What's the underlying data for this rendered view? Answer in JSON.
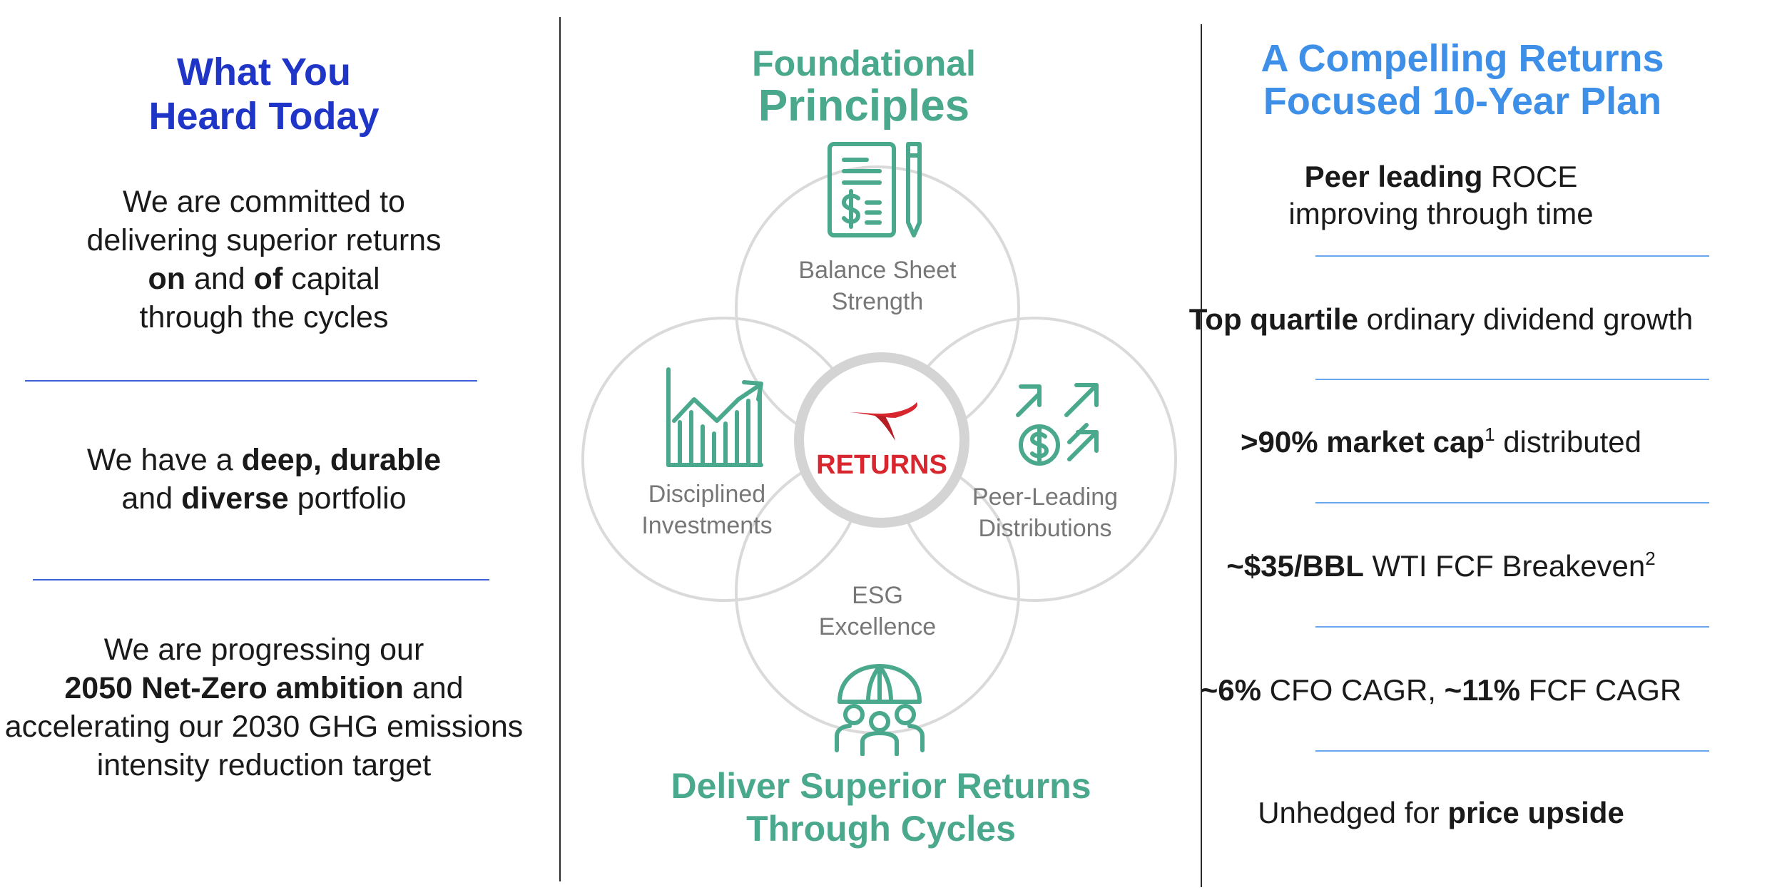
{
  "left": {
    "title_line1": "What You",
    "title_line2": "Heard Today",
    "block1": {
      "line1": "We are committed to",
      "line2": "delivering superior returns",
      "line3_bold1": "on",
      "line3_mid": " and ",
      "line3_bold2": "of",
      "line3_end": " capital",
      "line4": "through the cycles"
    },
    "block2": {
      "pre": "We have a ",
      "bold1": "deep, durable",
      "line2_pre": "and ",
      "bold2": "diverse",
      "line2_end": " portfolio"
    },
    "block3": {
      "line1": "We are progressing our",
      "bold": "2050 Net-Zero ambition",
      "line2_end": " and",
      "line3": "accelerating our 2030 GHG emissions",
      "line4": "intensity reduction target"
    }
  },
  "middle": {
    "title_line1": "Foundational",
    "title_line2": "Principles",
    "circles": {
      "top": {
        "line1": "Balance Sheet",
        "line2": "Strength",
        "icon": "balance-sheet-icon"
      },
      "left": {
        "line1": "Disciplined",
        "line2": "Investments",
        "icon": "growth-chart-icon"
      },
      "right": {
        "line1": "Peer-Leading",
        "line2": "Distributions",
        "icon": "distribution-arrows-icon"
      },
      "bottom": {
        "line1": "ESG",
        "line2": "Excellence",
        "icon": "people-globe-icon"
      }
    },
    "center_label": "RETURNS",
    "center_icon": "conocophillips-logo",
    "bottom_line1": "Deliver Superior Returns",
    "bottom_line2": "Through Cycles",
    "colors": {
      "green": "#4aa88c",
      "red": "#d8262e",
      "circle": "#d9d9d9",
      "label": "#777777"
    }
  },
  "right": {
    "title_line1": "A Compelling Returns",
    "title_line2": "Focused 10-Year Plan",
    "item1": {
      "bold": "Peer leading",
      "rest": " ROCE",
      "line2": "improving through time"
    },
    "item2": {
      "bold": "Top quartile",
      "rest": " ordinary dividend growth"
    },
    "item3": {
      "bold": ">90% market cap",
      "sup": "1",
      "rest": " distributed"
    },
    "item4": {
      "bold": "~$35/BBL",
      "rest": " WTI FCF Breakeven",
      "sup": "2"
    },
    "item5": {
      "bold1": "~6%",
      "mid": " CFO CAGR, ",
      "bold2": "~11%",
      "rest": " FCF CAGR"
    },
    "item6": {
      "pre": "Unhedged for ",
      "bold": "price upside"
    }
  }
}
